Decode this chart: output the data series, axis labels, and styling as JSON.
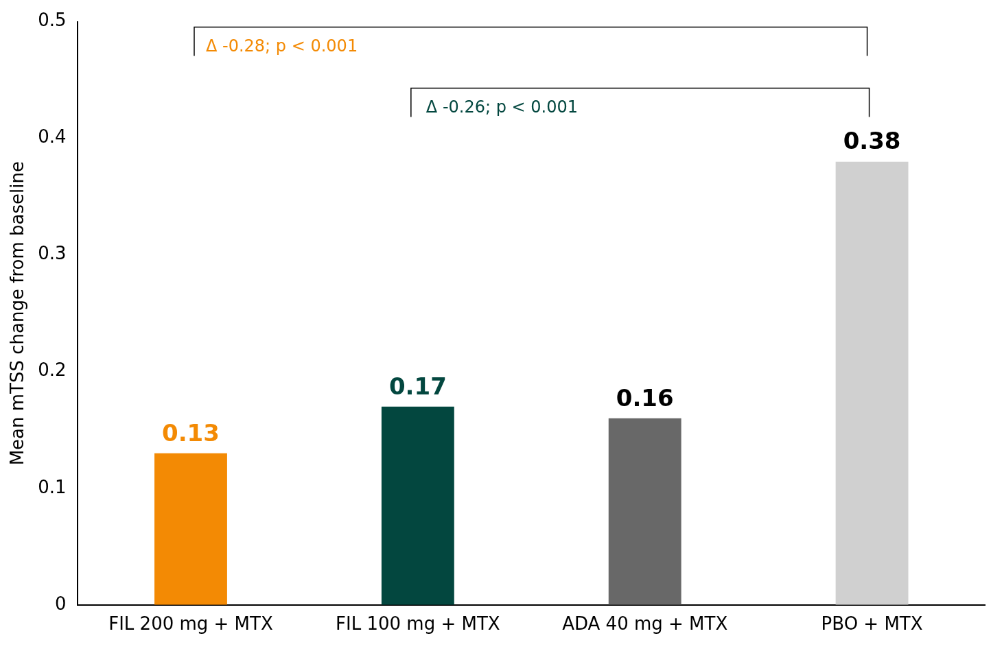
{
  "chart_data": {
    "type": "bar",
    "categories": [
      "FIL 200 mg + MTX",
      "FIL 100 mg + MTX",
      "ADA 40 mg + MTX",
      "PBO + MTX"
    ],
    "values": [
      0.13,
      0.17,
      0.16,
      0.38
    ],
    "colors": [
      "#f38a04",
      "#03473f",
      "#686868",
      "#d0d0d0"
    ],
    "ylabel": "Mean mTSS change from baseline",
    "ylim": [
      0,
      0.5
    ],
    "yticks": [
      0,
      0.1,
      0.2,
      0.3,
      0.4,
      0.5
    ],
    "data_labels": true,
    "grid": false,
    "legend": false,
    "annotations": [
      "Δ -0.28; p < 0.001",
      "Δ -0.26; p < 0.001"
    ]
  }
}
